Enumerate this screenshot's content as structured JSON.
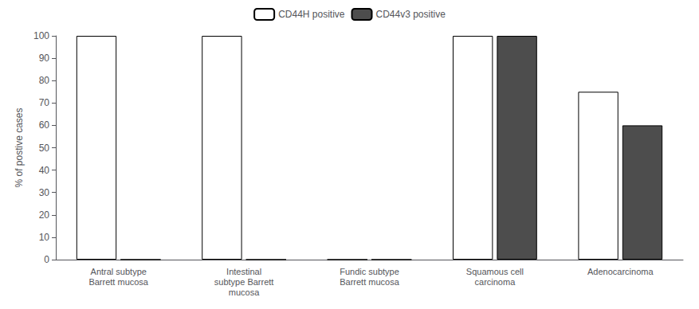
{
  "chart_data": {
    "type": "bar",
    "categories": [
      "Antral subtype\nBarrett mucosa",
      "Intestinal\nsubtype Barrett\nmucosa",
      "Fundic subtype\nBarrett mucosa",
      "Squamous cell\ncarcinoma",
      "Adenocarcinoma"
    ],
    "series": [
      {
        "name": "CD44H positive",
        "color": "#ffffff",
        "values": [
          100,
          100,
          0,
          100,
          75
        ]
      },
      {
        "name": "CD44v3 positive",
        "color": "#4d4d4d",
        "values": [
          0,
          0,
          0,
          100,
          60
        ]
      }
    ],
    "ylabel": "% of postive cases",
    "ylim": [
      0,
      100
    ],
    "yticks": [
      0,
      10,
      20,
      30,
      40,
      50,
      60,
      70,
      80,
      90,
      100
    ],
    "grid": false,
    "legend": "upper center"
  }
}
